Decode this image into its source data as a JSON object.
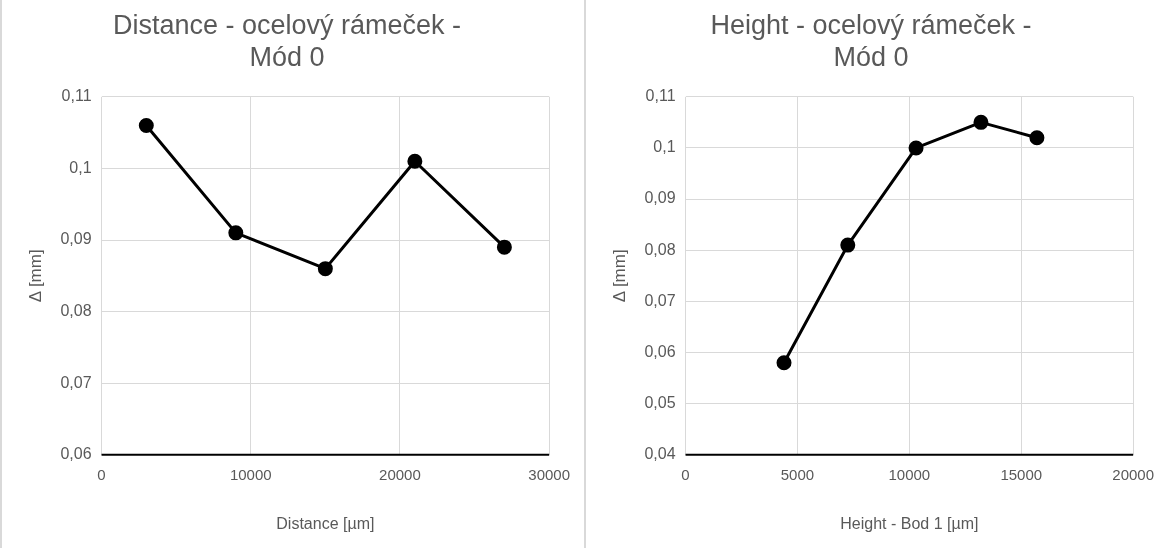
{
  "chart_data": [
    {
      "type": "line",
      "title": "Distance - ocelový rámeček - Mód 0",
      "xlabel": "Distance [µm]",
      "ylabel": "Δ [mm]",
      "x": [
        3000,
        9000,
        15000,
        21000,
        27000
      ],
      "series": [
        {
          "color": "#000000",
          "values": [
            0.106,
            0.091,
            0.086,
            0.101,
            0.089
          ]
        }
      ],
      "xlim": [
        0,
        30000
      ],
      "xticks": [
        0,
        10000,
        20000,
        30000
      ],
      "ylim": [
        0.06,
        0.11
      ],
      "yticks": [
        {
          "value": 0.06,
          "label": "0,06"
        },
        {
          "value": 0.07,
          "label": "0,07"
        },
        {
          "value": 0.08,
          "label": "0,08"
        },
        {
          "value": 0.09,
          "label": "0,09"
        },
        {
          "value": 0.1,
          "label": "0,1"
        },
        {
          "value": 0.11,
          "label": "0,11"
        }
      ],
      "grid": true,
      "legend": false,
      "marker": "circle",
      "line_style": "solid"
    },
    {
      "type": "line",
      "title": "Height - ocelový rámeček - Mód 0",
      "xlabel": "Height - Bod 1 [µm]",
      "ylabel": "Δ [mm]",
      "x": [
        4400,
        7250,
        10300,
        13200,
        15700
      ],
      "series": [
        {
          "color": "#000000",
          "values": [
            0.058,
            0.081,
            0.1,
            0.105,
            0.102
          ]
        }
      ],
      "xlim": [
        0,
        20000
      ],
      "xticks": [
        0,
        5000,
        10000,
        15000,
        20000
      ],
      "ylim": [
        0.04,
        0.11
      ],
      "yticks": [
        {
          "value": 0.04,
          "label": "0,04"
        },
        {
          "value": 0.05,
          "label": "0,05"
        },
        {
          "value": 0.06,
          "label": "0,06"
        },
        {
          "value": 0.07,
          "label": "0,07"
        },
        {
          "value": 0.08,
          "label": "0,08"
        },
        {
          "value": 0.09,
          "label": "0,09"
        },
        {
          "value": 0.1,
          "label": "0,1"
        },
        {
          "value": 0.11,
          "label": "0,11"
        }
      ],
      "grid": true,
      "legend": false,
      "marker": "circle",
      "line_style": "solid"
    }
  ]
}
